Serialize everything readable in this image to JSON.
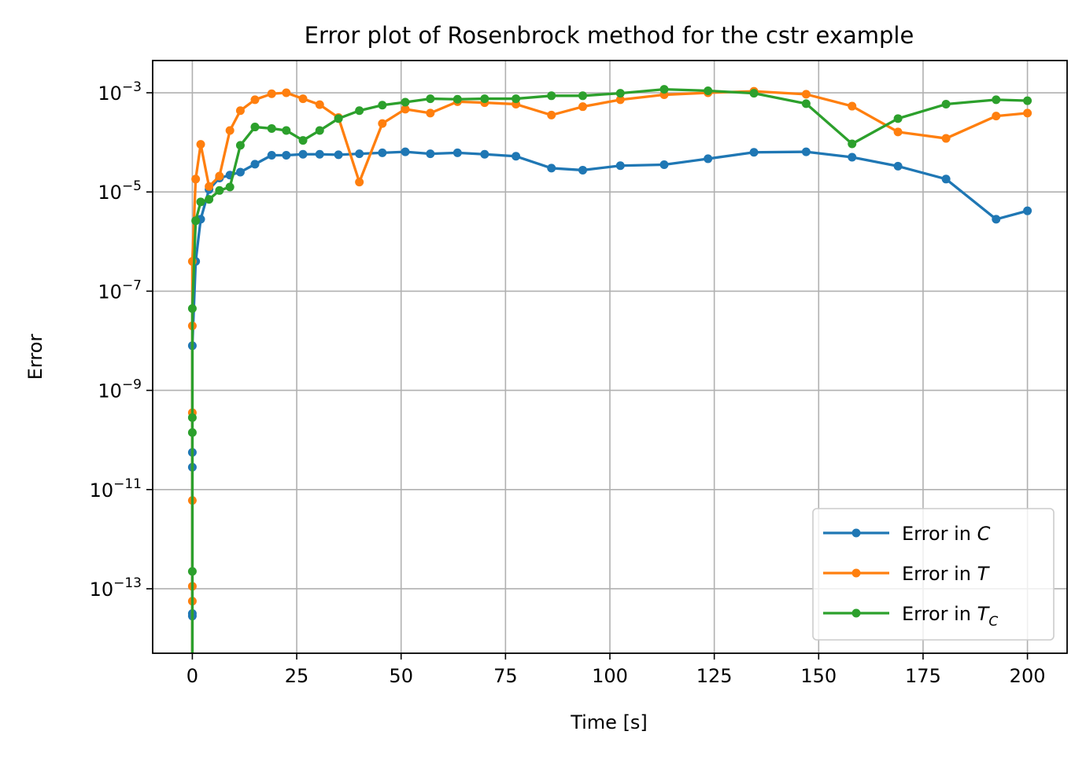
{
  "chart_data": {
    "type": "line",
    "title": "Error plot of Rosenbrock method for the cstr example",
    "xlabel": "Time [s]",
    "ylabel": "Error",
    "xlim": [
      -9.5,
      209.5
    ],
    "ylim_log10": [
      -14.3,
      -2.35
    ],
    "yscale": "log",
    "grid": true,
    "legend_position": "lower-right",
    "x_ticks": [
      0,
      25,
      50,
      75,
      100,
      125,
      150,
      175,
      200
    ],
    "x_tick_labels": [
      "0",
      "25",
      "50",
      "75",
      "100",
      "125",
      "150",
      "175",
      "200"
    ],
    "y_ticks_log10": [
      -13,
      -11,
      -9,
      -7,
      -5,
      -3
    ],
    "y_tick_mantissa": "10",
    "y_tick_exponents": [
      "−13",
      "−11",
      "−9",
      "−7",
      "−5",
      "−3"
    ],
    "legend_prefix": "Error in ",
    "series": [
      {
        "name": "Error in C",
        "legend_symbol": "C",
        "legend_subscript": "",
        "color": "#1f77b4",
        "points": [
          [
            0,
            -14.6
          ],
          [
            0,
            -13.55
          ],
          [
            0,
            -13.5
          ],
          [
            0,
            -10.55
          ],
          [
            0,
            -10.25
          ],
          [
            0,
            -8.1
          ],
          [
            0.8,
            -6.4
          ],
          [
            2,
            -5.55
          ],
          [
            4,
            -4.95
          ],
          [
            6.5,
            -4.72
          ],
          [
            9,
            -4.66
          ],
          [
            11.5,
            -4.6
          ],
          [
            15,
            -4.44
          ],
          [
            19,
            -4.26
          ],
          [
            22.5,
            -4.26
          ],
          [
            26.5,
            -4.24
          ],
          [
            30.5,
            -4.24
          ],
          [
            35,
            -4.25
          ],
          [
            40,
            -4.23
          ],
          [
            45.5,
            -4.21
          ],
          [
            51,
            -4.19
          ],
          [
            57,
            -4.23
          ],
          [
            63.5,
            -4.21
          ],
          [
            70,
            -4.24
          ],
          [
            77.5,
            -4.28
          ],
          [
            86,
            -4.52
          ],
          [
            93.5,
            -4.56
          ],
          [
            102.5,
            -4.47
          ],
          [
            113,
            -4.45
          ],
          [
            123.5,
            -4.33
          ],
          [
            134.5,
            -4.2
          ],
          [
            147,
            -4.19
          ],
          [
            158,
            -4.3
          ],
          [
            169,
            -4.48
          ],
          [
            180.5,
            -4.74
          ],
          [
            192.5,
            -5.55
          ],
          [
            200,
            -5.38
          ]
        ]
      },
      {
        "name": "Error in T",
        "legend_symbol": "T",
        "legend_subscript": "",
        "color": "#ff7f0e",
        "points": [
          [
            0,
            -14.6
          ],
          [
            0,
            -13.25
          ],
          [
            0,
            -12.95
          ],
          [
            0,
            -11.22
          ],
          [
            0,
            -9.45
          ],
          [
            0,
            -7.7
          ],
          [
            0,
            -6.4
          ],
          [
            0.8,
            -4.74
          ],
          [
            2,
            -4.04
          ],
          [
            4,
            -4.89
          ],
          [
            6.5,
            -4.68
          ],
          [
            9,
            -3.76
          ],
          [
            11.5,
            -3.36
          ],
          [
            15,
            -3.14
          ],
          [
            19,
            -3.02
          ],
          [
            22.5,
            -3.0
          ],
          [
            26.5,
            -3.12
          ],
          [
            30.5,
            -3.24
          ],
          [
            35,
            -3.5
          ],
          [
            40,
            -4.8
          ],
          [
            45.5,
            -3.62
          ],
          [
            51,
            -3.33
          ],
          [
            57,
            -3.41
          ],
          [
            63.5,
            -3.18
          ],
          [
            70,
            -3.2
          ],
          [
            77.5,
            -3.23
          ],
          [
            86,
            -3.45
          ],
          [
            93.5,
            -3.28
          ],
          [
            102.5,
            -3.14
          ],
          [
            113,
            -3.04
          ],
          [
            123.5,
            -3.0
          ],
          [
            134.5,
            -2.97
          ],
          [
            147,
            -3.03
          ],
          [
            158,
            -3.27
          ],
          [
            169,
            -3.79
          ],
          [
            180.5,
            -3.92
          ],
          [
            192.5,
            -3.47
          ],
          [
            200,
            -3.41
          ]
        ]
      },
      {
        "name": "Error in T_C",
        "legend_symbol": "T",
        "legend_subscript": "C",
        "color": "#2ca02c",
        "points": [
          [
            0,
            -14.6
          ],
          [
            0,
            -12.65
          ],
          [
            0,
            -9.85
          ],
          [
            0,
            -9.55
          ],
          [
            0,
            -7.35
          ],
          [
            0.8,
            -5.58
          ],
          [
            2,
            -5.2
          ],
          [
            4,
            -5.15
          ],
          [
            6.5,
            -4.97
          ],
          [
            9,
            -4.9
          ],
          [
            11.5,
            -4.06
          ],
          [
            15,
            -3.69
          ],
          [
            19,
            -3.72
          ],
          [
            22.5,
            -3.76
          ],
          [
            26.5,
            -3.96
          ],
          [
            30.5,
            -3.76
          ],
          [
            35,
            -3.52
          ],
          [
            40,
            -3.36
          ],
          [
            45.5,
            -3.25
          ],
          [
            51,
            -3.19
          ],
          [
            57,
            -3.12
          ],
          [
            63.5,
            -3.13
          ],
          [
            70,
            -3.12
          ],
          [
            77.5,
            -3.12
          ],
          [
            86,
            -3.06
          ],
          [
            93.5,
            -3.06
          ],
          [
            102.5,
            -3.01
          ],
          [
            113,
            -2.93
          ],
          [
            123.5,
            -2.96
          ],
          [
            134.5,
            -3.01
          ],
          [
            147,
            -3.22
          ],
          [
            158,
            -4.03
          ],
          [
            169,
            -3.52
          ],
          [
            180.5,
            -3.23
          ],
          [
            192.5,
            -3.14
          ],
          [
            200,
            -3.16
          ]
        ]
      }
    ]
  }
}
